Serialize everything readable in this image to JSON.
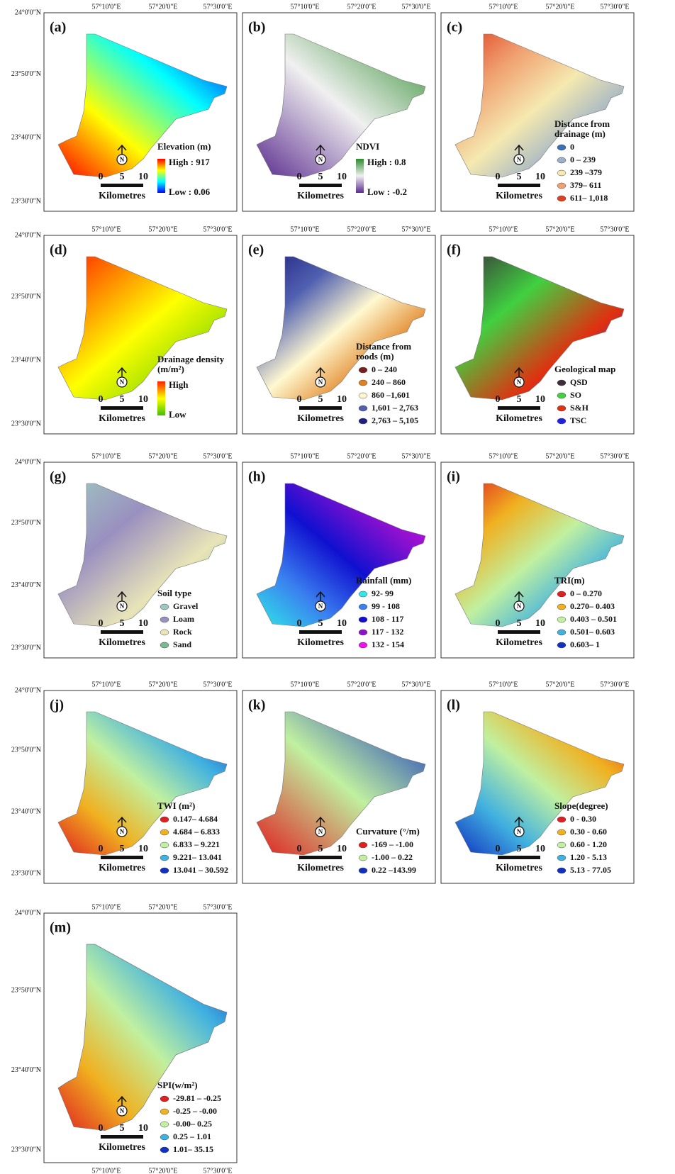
{
  "coordinates": {
    "lon": [
      "57°10'0\"E",
      "57°20'0\"E",
      "57°30'0\"E"
    ],
    "lat": [
      "24°0'0\"N",
      "23°50'0\"N",
      "23°40'0\"N",
      "23°30'0\"N"
    ]
  },
  "scale_bar": {
    "ticks": [
      "0",
      "5",
      "10"
    ],
    "unit": "Kilometres"
  },
  "north": "N",
  "panels": [
    {
      "label": "(a)",
      "legend": {
        "title_lines": [
          "Elevation (m)"
        ],
        "high": "High : 917",
        "low": "Low : 0.06",
        "colors": [
          "#ff0000",
          "#ffff00",
          "#00ffff",
          "#0000ff"
        ]
      }
    },
    {
      "label": "(b)",
      "legend": {
        "title_lines": [
          "NDVI"
        ],
        "high": "High : 0.8",
        "low": "Low : -0.2",
        "colors": [
          "#2e8b2e",
          "#f0f0f0",
          "#5b2c8f"
        ]
      }
    },
    {
      "label": "(c)",
      "legend": {
        "title_lines": [
          "Distance from",
          "drainage (m)"
        ],
        "items": [
          {
            "text": "0",
            "color": "#3a6fb5"
          },
          {
            "text": "0 – 239",
            "color": "#9ab0c8"
          },
          {
            "text": "239 –379",
            "color": "#f5e9b0"
          },
          {
            "text": "379– 611",
            "color": "#f0a070"
          },
          {
            "text": "611– 1,018",
            "color": "#e04020"
          }
        ]
      }
    },
    {
      "label": "(d)",
      "legend": {
        "title_lines": [
          "Drainage density",
          "(m/m²)"
        ],
        "high": "High",
        "low": "Low",
        "colors": [
          "#ff2000",
          "#ffff00",
          "#40c000"
        ]
      }
    },
    {
      "label": "(e)",
      "legend": {
        "title_lines": [
          "Distance from",
          "roods (m)"
        ],
        "items": [
          {
            "text": "0 – 240",
            "color": "#7a2020"
          },
          {
            "text": "240 – 860",
            "color": "#e08020"
          },
          {
            "text": "860 –1,601",
            "color": "#fff8d0"
          },
          {
            "text": "1,601 – 2,763",
            "color": "#5060b0"
          },
          {
            "text": "2,763 – 5,105",
            "color": "#202080"
          }
        ]
      }
    },
    {
      "label": "(f)",
      "legend": {
        "title_lines": [
          "Geological map"
        ],
        "items": [
          {
            "text": "QSD",
            "color": "#3a2e3a"
          },
          {
            "text": "SO",
            "color": "#40d040"
          },
          {
            "text": "S&H",
            "color": "#e03010"
          },
          {
            "text": "TSC",
            "color": "#2020e0"
          }
        ]
      }
    },
    {
      "label": "(g)",
      "legend": {
        "title_lines": [
          "Soil type"
        ],
        "items": [
          {
            "text": "Gravel",
            "color": "#9ec8c0"
          },
          {
            "text": "Loam",
            "color": "#9a90c0"
          },
          {
            "text": "Rock",
            "color": "#e8e4b8"
          },
          {
            "text": "Sand",
            "color": "#7ab890"
          }
        ]
      }
    },
    {
      "label": "(h)",
      "legend": {
        "title_lines": [
          "Rainfall (mm)"
        ],
        "items": [
          {
            "text": "92- 99",
            "color": "#30e8e8"
          },
          {
            "text": "99 - 108",
            "color": "#3a80f0"
          },
          {
            "text": "108 - 117",
            "color": "#1010d0"
          },
          {
            "text": "117 - 132",
            "color": "#9010d0"
          },
          {
            "text": "132 - 154",
            "color": "#f010f0"
          }
        ]
      }
    },
    {
      "label": "(i)",
      "legend": {
        "title_lines": [
          "TRI(m)"
        ],
        "items": [
          {
            "text": "0 – 0.270",
            "color": "#e02020"
          },
          {
            "text": "0.270– 0.403",
            "color": "#f0b020"
          },
          {
            "text": "0.403 – 0.501",
            "color": "#c0f0a0"
          },
          {
            "text": "0.501– 0.603",
            "color": "#40b0e0"
          },
          {
            "text": "0.603– 1",
            "color": "#1030c0"
          }
        ]
      }
    },
    {
      "label": "(j)",
      "legend": {
        "title_lines": [
          "TWI (m²)"
        ],
        "items": [
          {
            "text": "0.147– 4.684",
            "color": "#e02020"
          },
          {
            "text": "4.684 – 6.833",
            "color": "#f0b020"
          },
          {
            "text": "6.833 – 9.221",
            "color": "#c0f0a0"
          },
          {
            "text": "9.221– 13.041",
            "color": "#40b0e0"
          },
          {
            "text": "13.041 – 30.592",
            "color": "#1030c0"
          }
        ]
      }
    },
    {
      "label": "(k)",
      "legend": {
        "title_lines": [
          "Curvature (°/m)"
        ],
        "items": [
          {
            "text": "-169 – -1.00",
            "color": "#e02020"
          },
          {
            "text": "-1.00 – 0.22",
            "color": "#c0f0a0"
          },
          {
            "text": "0.22 –143.99",
            "color": "#1030c0"
          }
        ]
      }
    },
    {
      "label": "(l)",
      "legend": {
        "title_lines": [
          "Slope(degree)"
        ],
        "items": [
          {
            "text": "0 - 0.30",
            "color": "#e02020"
          },
          {
            "text": "0.30 - 0.60",
            "color": "#f0b020"
          },
          {
            "text": "0.60 - 1.20",
            "color": "#c0f0a0"
          },
          {
            "text": "1.20 - 5.13",
            "color": "#40b0e0"
          },
          {
            "text": "5.13 - 77.05",
            "color": "#1030c0"
          }
        ]
      }
    },
    {
      "label": "(m)",
      "legend": {
        "title_lines": [
          "SPI(w/m²)"
        ],
        "items": [
          {
            "text": "-29.81 – -0.25",
            "color": "#e02020"
          },
          {
            "text": "-0.25 – -0.00",
            "color": "#f0b020"
          },
          {
            "text": "-0.00– 0.25",
            "color": "#c0f0a0"
          },
          {
            "text": "0.25 – 1.01",
            "color": "#40b0e0"
          },
          {
            "text": "1.01– 35.15",
            "color": "#1030c0"
          }
        ]
      }
    }
  ]
}
